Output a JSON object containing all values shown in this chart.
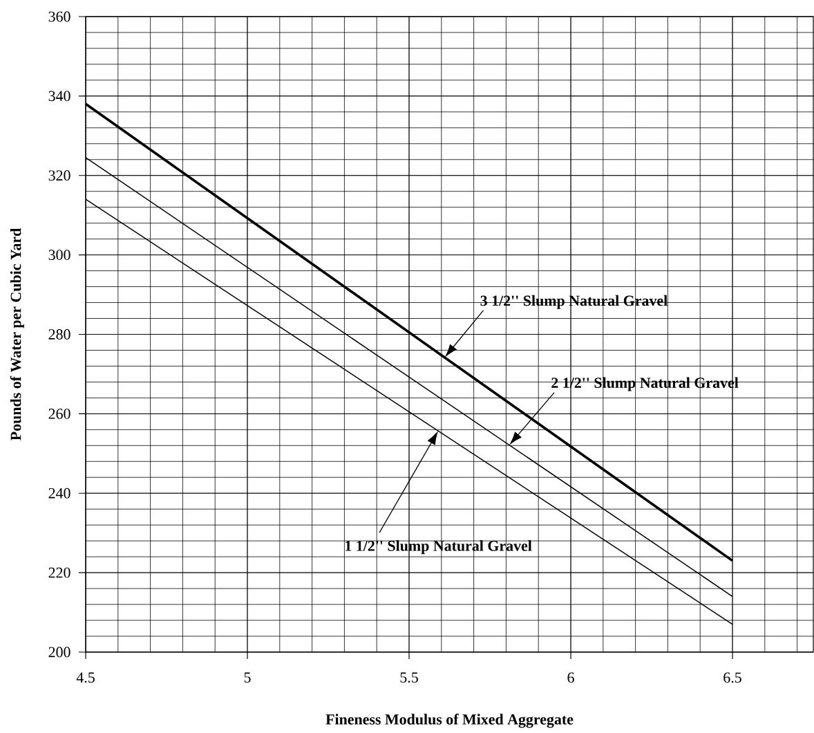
{
  "chart_data": {
    "type": "line",
    "xlabel": "Fineness Modulus of Mixed Aggregate",
    "ylabel": "Pounds of Water per Cubic Yard",
    "x": [
      4.5,
      6.5
    ],
    "series": [
      {
        "color": "#000000",
        "values": [
          338,
          223
        ]
      },
      {
        "color": "#000000",
        "values": [
          324.5,
          214
        ]
      },
      {
        "color": "#000000",
        "values": [
          314,
          207
        ]
      }
    ],
    "xlim": [
      4.5,
      6.75
    ],
    "xticks": [
      4.5,
      5,
      5.5,
      6,
      6.5
    ],
    "ylim": [
      200,
      360
    ],
    "yticks": [
      200,
      220,
      240,
      260,
      280,
      300,
      320,
      340,
      360
    ],
    "grid": true,
    "marker": "none",
    "line_style": "solid",
    "annotations": [
      "3 1/2'' Slump Natural Gravel",
      "2 1/2'' Slump Natural Gravel",
      "1 1/2'' Slump Natural Gravel"
    ]
  }
}
